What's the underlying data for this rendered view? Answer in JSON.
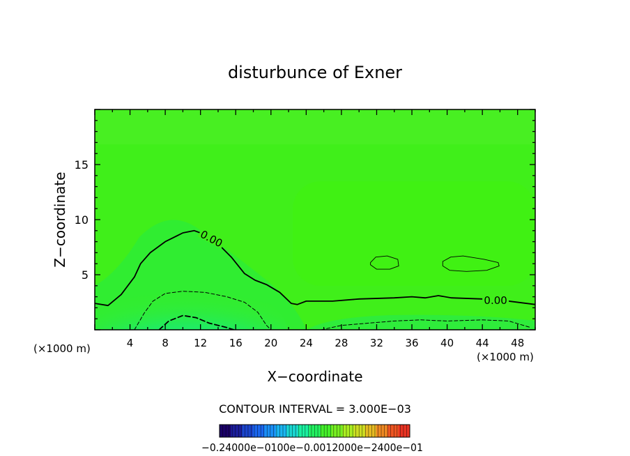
{
  "chart_data": {
    "type": "contour",
    "title": "disturbunce of Exner",
    "xlabel": "X−coordinate",
    "ylabel": "Z−coordinate",
    "x_unit_left": "(×1000 m)",
    "x_unit_right": "(×1000 m)",
    "xlim": [
      0,
      50
    ],
    "ylim": [
      0,
      20
    ],
    "x_ticks": [
      4,
      8,
      12,
      16,
      20,
      24,
      28,
      32,
      36,
      40,
      44,
      48
    ],
    "y_ticks": [
      5,
      10,
      15
    ],
    "contour_interval_text": "CONTOUR INTERVAL = 3.000E−03",
    "colorbar_labels_text": "−0.24000e−0100e−0.0012000e−2400e−01",
    "contour_labels": [
      {
        "text": "0.00",
        "x": 13.2,
        "z": 8.2
      },
      {
        "text": "0.00",
        "x": 45.5,
        "z": 2.6
      }
    ],
    "contours": [
      {
        "level": "0.00",
        "style": "solid-thick",
        "points": [
          [
            0,
            2.4
          ],
          [
            1.5,
            2.2
          ],
          [
            3,
            3.2
          ],
          [
            4.5,
            4.8
          ],
          [
            5.2,
            6.0
          ],
          [
            6.3,
            7.0
          ],
          [
            8,
            8.0
          ],
          [
            10,
            8.8
          ],
          [
            11.3,
            9.0
          ],
          [
            12.3,
            8.7
          ],
          [
            14,
            7.8
          ],
          [
            15.5,
            6.6
          ],
          [
            17,
            5.1
          ],
          [
            18.2,
            4.5
          ],
          [
            19.5,
            4.1
          ],
          [
            21,
            3.4
          ],
          [
            22.3,
            2.4
          ],
          [
            23,
            2.3
          ],
          [
            24,
            2.6
          ],
          [
            27,
            2.6
          ],
          [
            30,
            2.8
          ],
          [
            34,
            2.9
          ],
          [
            36,
            3.0
          ],
          [
            37.5,
            2.9
          ],
          [
            39,
            3.1
          ],
          [
            40.5,
            2.9
          ],
          [
            44,
            2.8
          ],
          [
            46,
            2.7
          ],
          [
            50,
            2.3
          ]
        ]
      },
      {
        "level": "negative",
        "style": "dashed",
        "points": [
          [
            4.5,
            0
          ],
          [
            5.6,
            1.5
          ],
          [
            6.6,
            2.6
          ],
          [
            8,
            3.3
          ],
          [
            10,
            3.5
          ],
          [
            12.5,
            3.4
          ],
          [
            15,
            3.0
          ],
          [
            17,
            2.5
          ],
          [
            18.5,
            1.6
          ],
          [
            19.5,
            0.4
          ],
          [
            20,
            0
          ]
        ]
      },
      {
        "level": "negative",
        "style": "dashed-thick",
        "points": [
          [
            7.3,
            0
          ],
          [
            8.4,
            0.8
          ],
          [
            10,
            1.3
          ],
          [
            11.5,
            1.1
          ],
          [
            13,
            0.6
          ],
          [
            15,
            0.2
          ],
          [
            15.8,
            0
          ]
        ]
      },
      {
        "level": "negative",
        "style": "dashed",
        "points": [
          [
            25.7,
            0
          ],
          [
            28,
            0.4
          ],
          [
            31,
            0.6
          ],
          [
            34,
            0.8
          ],
          [
            37,
            0.9
          ],
          [
            40,
            0.8
          ],
          [
            44,
            0.9
          ],
          [
            47,
            0.8
          ],
          [
            49.5,
            0.2
          ]
        ]
      },
      {
        "level": "closed",
        "style": "solid-thin",
        "points": [
          [
            31.3,
            6.1
          ],
          [
            31.9,
            6.6
          ],
          [
            33.2,
            6.7
          ],
          [
            34.4,
            6.4
          ],
          [
            34.5,
            5.8
          ],
          [
            33.5,
            5.5
          ],
          [
            32,
            5.5
          ],
          [
            31.3,
            5.9
          ],
          [
            31.3,
            6.1
          ]
        ]
      },
      {
        "level": "closed",
        "style": "solid-thin",
        "points": [
          [
            39.5,
            6.2
          ],
          [
            40.4,
            6.6
          ],
          [
            41.8,
            6.7
          ],
          [
            44.2,
            6.4
          ],
          [
            45.8,
            6.1
          ],
          [
            45.9,
            5.8
          ],
          [
            44.5,
            5.4
          ],
          [
            42.2,
            5.3
          ],
          [
            40.3,
            5.4
          ],
          [
            39.5,
            5.8
          ],
          [
            39.5,
            6.2
          ]
        ]
      }
    ],
    "colorbar_colors": [
      "#1a0066",
      "#1b1d9a",
      "#1a44cc",
      "#1a66ee",
      "#1a8ef5",
      "#1ab5f0",
      "#1ad6d0",
      "#1af0a0",
      "#22f060",
      "#44ef2a",
      "#77ee22",
      "#aaee22",
      "#ccdd22",
      "#e6bb22",
      "#ee8822",
      "#ee5522",
      "#e83322"
    ],
    "colors": {
      "field_base": "#40ef1a",
      "field_light": "#4ef02a",
      "field_green": "#25ec46",
      "field_teal": "#17e98a",
      "field_cyan": "#15e8b4",
      "field_bright": "#3ff20f"
    }
  }
}
